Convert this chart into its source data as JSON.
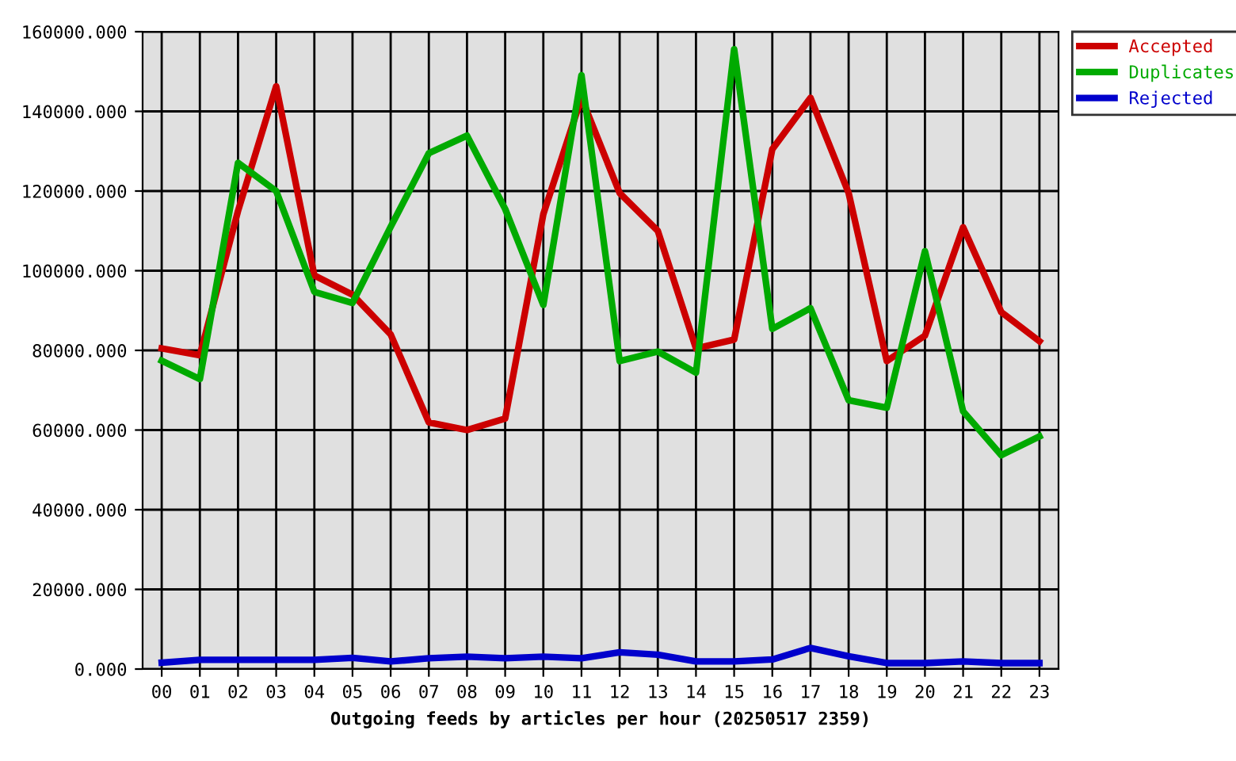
{
  "chart_data": {
    "type": "line",
    "xlabel": "Outgoing feeds by articles per hour (20250517 2359)",
    "categories": [
      "00",
      "01",
      "02",
      "03",
      "04",
      "05",
      "06",
      "07",
      "08",
      "09",
      "10",
      "11",
      "12",
      "13",
      "14",
      "15",
      "16",
      "17",
      "18",
      "19",
      "20",
      "21",
      "22",
      "23"
    ],
    "series": [
      {
        "name": "Accepted",
        "color": "#cc0000",
        "values": [
          80500,
          78800,
          115000,
          146300,
          98800,
          94000,
          84000,
          61900,
          60000,
          62900,
          114200,
          143400,
          119500,
          110000,
          80500,
          82700,
          130500,
          143400,
          119500,
          77300,
          83700,
          110900,
          89600,
          82300
        ]
      },
      {
        "name": "Duplicates",
        "color": "#00aa00",
        "values": [
          77400,
          72800,
          127100,
          120000,
          94700,
          91900,
          111000,
          129500,
          133900,
          115500,
          91400,
          149100,
          77300,
          79700,
          74400,
          155600,
          85400,
          90600,
          67500,
          65600,
          104900,
          64700,
          53700,
          58400
        ]
      },
      {
        "name": "Rejected",
        "color": "#0000cc",
        "values": [
          1600,
          2300,
          2300,
          2300,
          2300,
          2800,
          1900,
          2700,
          3100,
          2700,
          3100,
          2700,
          4200,
          3600,
          1900,
          1900,
          2400,
          5300,
          3200,
          1500,
          1500,
          1900,
          1500,
          1500
        ]
      }
    ],
    "ylim": [
      0,
      160000
    ],
    "yticks": [
      {
        "value": 0,
        "label": "0.000"
      },
      {
        "value": 20000,
        "label": "20000.000"
      },
      {
        "value": 40000,
        "label": "40000.000"
      },
      {
        "value": 60000,
        "label": "60000.000"
      },
      {
        "value": 80000,
        "label": "80000.000"
      },
      {
        "value": 100000,
        "label": "100000.000"
      },
      {
        "value": 120000,
        "label": "120000.000"
      },
      {
        "value": 140000,
        "label": "140000.000"
      },
      {
        "value": 160000,
        "label": "160000.000"
      }
    ],
    "grid": true,
    "legend": "top right",
    "line_style": "solid"
  }
}
